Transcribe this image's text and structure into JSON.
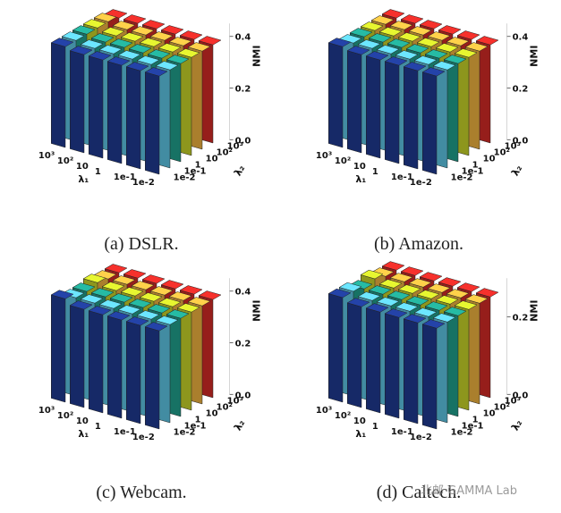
{
  "watermark": "北邮 GAMMA Lab",
  "colors": [
    "#1f3a93",
    "#2f7fd0",
    "#5ec8e8",
    "#21a38f",
    "#3fb33f",
    "#c9d62a",
    "#f3b640",
    "#f07a2c",
    "#d62b26"
  ],
  "chart_data": [
    {
      "type": "bar3d",
      "caption": "(a) DSLR.",
      "zlabel": "NMI",
      "xlabel": "λ₁",
      "ylabel": "λ₂",
      "x_ticks": [
        "1e-2",
        "1e-1",
        "1",
        "10",
        "10²",
        "10³"
      ],
      "y_ticks": [
        "1e-2",
        "1e-1",
        "1",
        "10",
        "10²",
        "10³"
      ],
      "z_ticks": [
        "0.0",
        "0.2",
        "0.4"
      ],
      "zlim": [
        0,
        0.45
      ],
      "values": [
        [
          0.38,
          0.38,
          0.38,
          0.38,
          0.38,
          0.38
        ],
        [
          0.38,
          0.38,
          0.38,
          0.38,
          0.38,
          0.38
        ],
        [
          0.38,
          0.38,
          0.38,
          0.38,
          0.38,
          0.38
        ],
        [
          0.38,
          0.38,
          0.38,
          0.38,
          0.38,
          0.38
        ],
        [
          0.38,
          0.38,
          0.38,
          0.38,
          0.38,
          0.38
        ],
        [
          0.39,
          0.39,
          0.39,
          0.39,
          0.39,
          0.38
        ]
      ]
    },
    {
      "type": "bar3d",
      "caption": "(b) Amazon.",
      "zlabel": "NMI",
      "xlabel": "λ₁",
      "ylabel": "λ₂",
      "x_ticks": [
        "1e-2",
        "1e-1",
        "1",
        "10",
        "10²",
        "10³"
      ],
      "y_ticks": [
        "1e-2",
        "1e-1",
        "1",
        "10",
        "10²",
        "10³"
      ],
      "z_ticks": [
        "0.0",
        "0.2",
        "0.4"
      ],
      "zlim": [
        0,
        0.45
      ],
      "values": [
        [
          0.38,
          0.38,
          0.38,
          0.38,
          0.38,
          0.38
        ],
        [
          0.38,
          0.38,
          0.38,
          0.38,
          0.38,
          0.38
        ],
        [
          0.38,
          0.38,
          0.38,
          0.38,
          0.38,
          0.38
        ],
        [
          0.38,
          0.38,
          0.38,
          0.38,
          0.38,
          0.38
        ],
        [
          0.38,
          0.38,
          0.38,
          0.38,
          0.38,
          0.38
        ],
        [
          0.39,
          0.38,
          0.38,
          0.38,
          0.38,
          0.38
        ]
      ]
    },
    {
      "type": "bar3d",
      "caption": "(c) Webcam.",
      "zlabel": "NMI",
      "xlabel": "λ₁",
      "ylabel": "λ₂",
      "x_ticks": [
        "1e-2",
        "1e-1",
        "1",
        "10",
        "10²",
        "10³"
      ],
      "y_ticks": [
        "1e-2",
        "1e-1",
        "1",
        "10",
        "10²",
        "10³"
      ],
      "z_ticks": [
        "0.0",
        "0.2",
        "0.4"
      ],
      "zlim": [
        0,
        0.45
      ],
      "values": [
        [
          0.38,
          0.38,
          0.38,
          0.38,
          0.38,
          0.38
        ],
        [
          0.38,
          0.38,
          0.38,
          0.38,
          0.38,
          0.38
        ],
        [
          0.38,
          0.38,
          0.38,
          0.38,
          0.38,
          0.38
        ],
        [
          0.38,
          0.38,
          0.38,
          0.38,
          0.38,
          0.38
        ],
        [
          0.38,
          0.38,
          0.38,
          0.38,
          0.38,
          0.38
        ],
        [
          0.4,
          0.38,
          0.38,
          0.39,
          0.38,
          0.38
        ]
      ]
    },
    {
      "type": "bar3d",
      "caption": "(d) Caltech.",
      "zlabel": "NMI",
      "xlabel": "λ₁",
      "ylabel": "λ₂",
      "x_ticks": [
        "1e-2",
        "1e-1",
        "1",
        "10",
        "10²",
        "10³"
      ],
      "y_ticks": [
        "1e-2",
        "1e-1",
        "1",
        "10",
        "10²",
        "10³"
      ],
      "z_ticks": [
        "0.0",
        "0.2"
      ],
      "zlim": [
        0,
        0.3
      ],
      "values": [
        [
          0.26,
          0.26,
          0.26,
          0.26,
          0.26,
          0.26
        ],
        [
          0.26,
          0.26,
          0.26,
          0.26,
          0.26,
          0.26
        ],
        [
          0.26,
          0.26,
          0.26,
          0.26,
          0.26,
          0.26
        ],
        [
          0.26,
          0.26,
          0.26,
          0.26,
          0.26,
          0.26
        ],
        [
          0.26,
          0.26,
          0.26,
          0.26,
          0.26,
          0.26
        ],
        [
          0.27,
          0.27,
          0.26,
          0.27,
          0.26,
          0.26
        ]
      ]
    }
  ]
}
